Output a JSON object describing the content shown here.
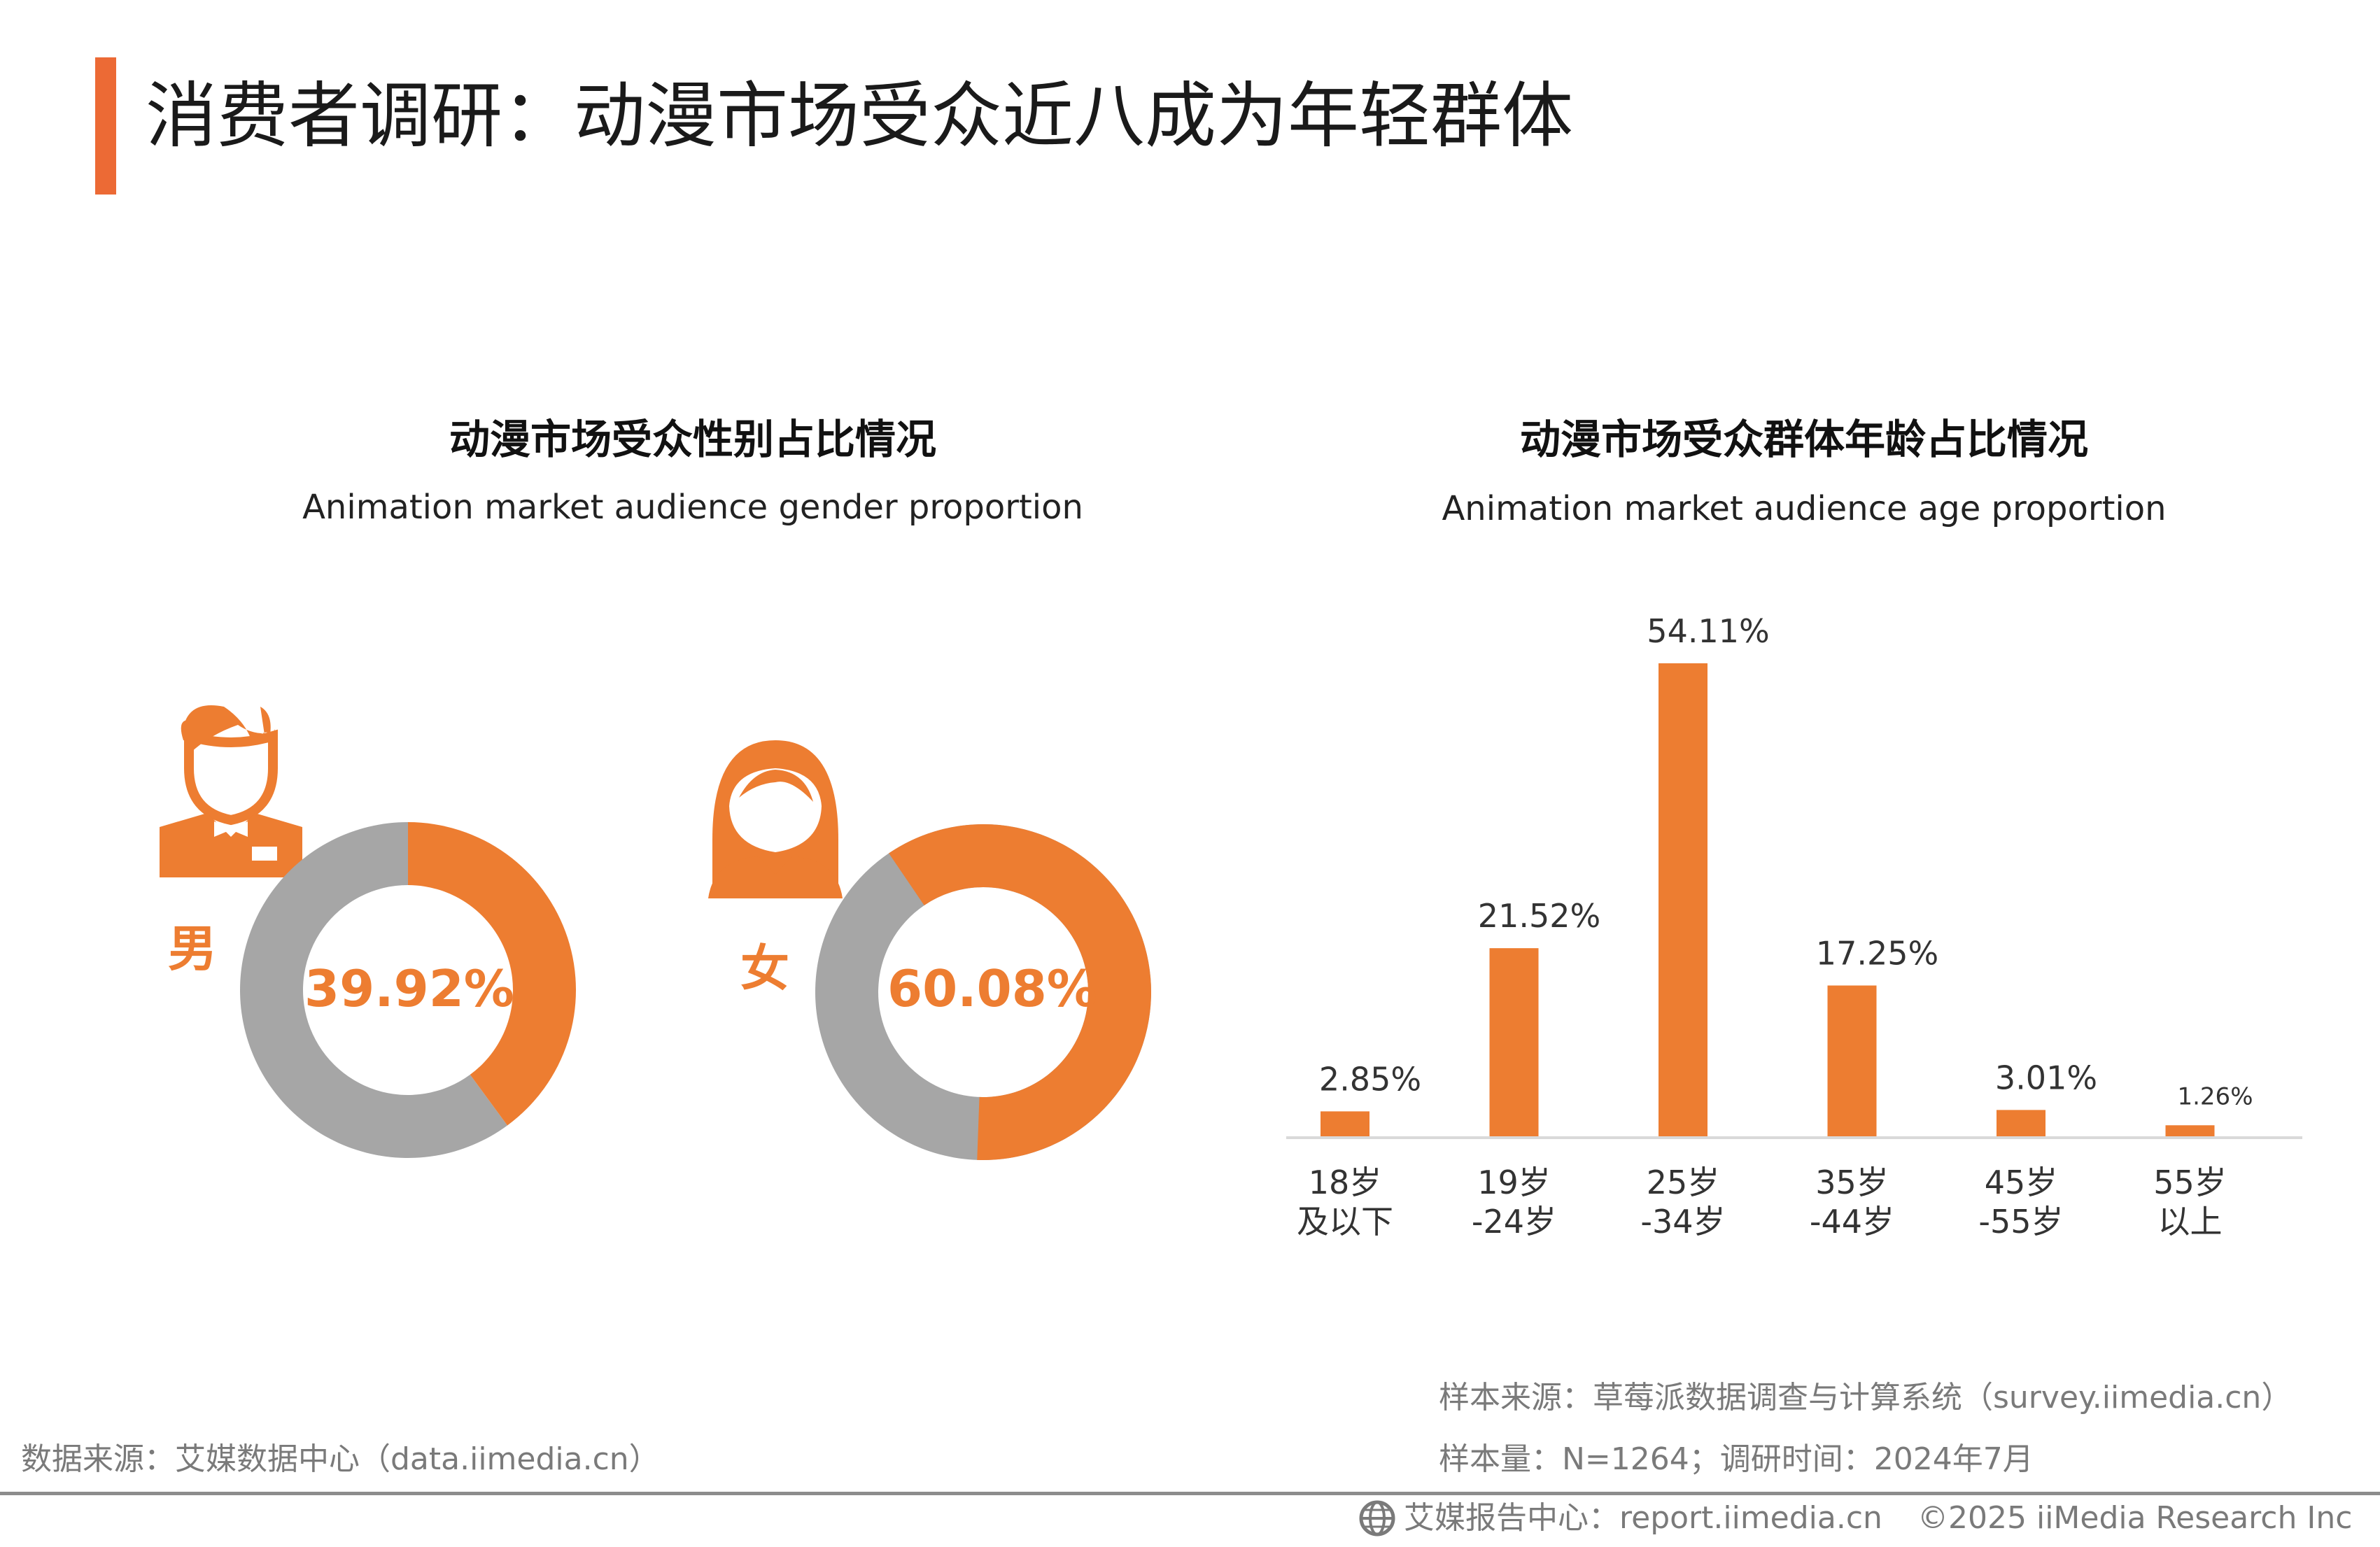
{
  "page_title": "消费者调研：动漫市场受众近八成为年轻群体",
  "colors": {
    "accent": "#ed7d31",
    "gray": "#a6a6a6",
    "title_bar": "#ec6a35"
  },
  "gender_chart": {
    "title": "动漫市场受众性别占比情况",
    "subtitle": "Animation market audience gender proportion"
  },
  "age_chart": {
    "title": "动漫市场受众群体年龄占比情况",
    "subtitle": "Animation market audience age proportion"
  },
  "chart_data": [
    {
      "type": "pie",
      "title": "动漫市场受众性别占比情况",
      "subtitle": "Animation market audience gender proportion",
      "slices": [
        {
          "label": "男",
          "value": 39.92,
          "value_label": "39.92%",
          "icon": "male-icon"
        },
        {
          "label": "女",
          "value": 60.08,
          "value_label": "60.08%",
          "icon": "female-icon"
        }
      ]
    },
    {
      "type": "bar",
      "title": "动漫市场受众群体年龄占比情况",
      "subtitle": "Animation market audience age proportion",
      "categories": [
        [
          "18岁",
          "及以下"
        ],
        [
          "19岁",
          "-24岁"
        ],
        [
          "25岁",
          "-34岁"
        ],
        [
          "35岁",
          "-44岁"
        ],
        [
          "45岁",
          "-55岁"
        ],
        [
          "55岁",
          "以上"
        ]
      ],
      "values": [
        2.85,
        21.52,
        54.11,
        17.25,
        3.01,
        1.26
      ],
      "value_labels": [
        "2.85%",
        "21.52%",
        "54.11%",
        "17.25%",
        "3.01%",
        "1.26%"
      ],
      "ylim": [
        0,
        54.11
      ],
      "grid": false,
      "legend": "none"
    }
  ],
  "footer": {
    "data_source": "数据来源：艾媒数据中心（data.iimedia.cn）",
    "sample_source": "样本来源：草莓派数据调查与计算系统（survey.iimedia.cn）",
    "sample_size": "样本量：N=1264；调研时间：2024年7月",
    "report_center": "艾媒报告中心：report.iimedia.cn",
    "copyright": "©2025  iiMedia Research  Inc"
  }
}
